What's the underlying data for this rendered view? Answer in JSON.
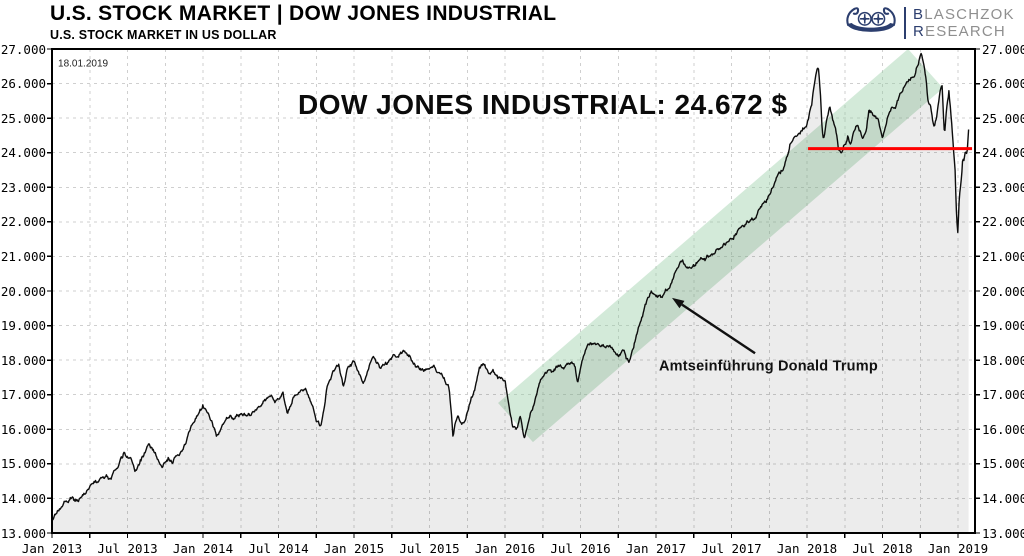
{
  "header": {
    "title": "U.S. STOCK MARKET | DOW JONES INDUSTRIAL",
    "subtitle": "U.S. STOCK MARKET IN US DOLLAR"
  },
  "logo": {
    "line1_initial": "B",
    "line1_rest": "LASCHZOK",
    "line2_initial": "R",
    "line2_rest": "ESEARCH",
    "accent_color": "#2c3e6e",
    "text_color": "#8f8f8f",
    "icon": "viking-ship-icon"
  },
  "chart_data": {
    "type": "line",
    "title": "DOW JONES INDUSTRIAL: 24.672 $",
    "date_label": "18.01.2019",
    "last_value": 24672,
    "unit": "USD",
    "grid": true,
    "ylim": [
      13000,
      27000
    ],
    "x_start_year": 2013,
    "x_end_year": 2019.12,
    "y_tick_labels": [
      "27.000",
      "26.000",
      "25.000",
      "24.000",
      "23.000",
      "22.000",
      "21.000",
      "20.000",
      "19.000",
      "18.000",
      "17.000",
      "16.000",
      "15.000",
      "14.000",
      "13.000"
    ],
    "x_tick_labels": [
      "Jan 2013",
      "Jul 2013",
      "Jan 2014",
      "Jul 2014",
      "Jan 2015",
      "Jul 2015",
      "Jan 2016",
      "Jul 2016",
      "Jan 2017",
      "Jul 2017",
      "Jan 2018",
      "Jul 2018",
      "Jan 2019"
    ],
    "series": [
      {
        "name": "Dow Jones Industrial Average",
        "color": "#0d0d0d",
        "fill": "rgba(0,0,0,0.075)",
        "keypoints": [
          [
            0.0,
            13350
          ],
          [
            0.04,
            13600
          ],
          [
            0.08,
            13880
          ],
          [
            0.12,
            13980
          ],
          [
            0.16,
            13920
          ],
          [
            0.2,
            14090
          ],
          [
            0.24,
            14300
          ],
          [
            0.28,
            14450
          ],
          [
            0.32,
            14550
          ],
          [
            0.36,
            14700
          ],
          [
            0.39,
            14560
          ],
          [
            0.42,
            14850
          ],
          [
            0.45,
            15100
          ],
          [
            0.48,
            15300
          ],
          [
            0.52,
            15050
          ],
          [
            0.55,
            14780
          ],
          [
            0.58,
            15000
          ],
          [
            0.61,
            15300
          ],
          [
            0.64,
            15550
          ],
          [
            0.67,
            15470
          ],
          [
            0.7,
            15100
          ],
          [
            0.73,
            14880
          ],
          [
            0.77,
            15200
          ],
          [
            0.8,
            15080
          ],
          [
            0.83,
            15300
          ],
          [
            0.86,
            15400
          ],
          [
            0.89,
            15650
          ],
          [
            0.92,
            16050
          ],
          [
            0.96,
            16250
          ],
          [
            1.0,
            16550
          ],
          [
            1.03,
            16450
          ],
          [
            1.06,
            16250
          ],
          [
            1.09,
            15720
          ],
          [
            1.12,
            15900
          ],
          [
            1.15,
            16150
          ],
          [
            1.18,
            16350
          ],
          [
            1.21,
            16270
          ],
          [
            1.25,
            16450
          ],
          [
            1.29,
            16380
          ],
          [
            1.33,
            16550
          ],
          [
            1.37,
            16680
          ],
          [
            1.41,
            16850
          ],
          [
            1.45,
            16950
          ],
          [
            1.49,
            16830
          ],
          [
            1.53,
            17050
          ],
          [
            1.56,
            16550
          ],
          [
            1.6,
            16950
          ],
          [
            1.64,
            17150
          ],
          [
            1.68,
            17100
          ],
          [
            1.71,
            16950
          ],
          [
            1.75,
            16350
          ],
          [
            1.78,
            16100
          ],
          [
            1.82,
            17200
          ],
          [
            1.86,
            17600
          ],
          [
            1.9,
            17830
          ],
          [
            1.93,
            17250
          ],
          [
            1.96,
            17850
          ],
          [
            2.0,
            17900
          ],
          [
            2.03,
            17600
          ],
          [
            2.06,
            17280
          ],
          [
            2.1,
            17850
          ],
          [
            2.13,
            18100
          ],
          [
            2.17,
            17750
          ],
          [
            2.21,
            17950
          ],
          [
            2.25,
            18050
          ],
          [
            2.29,
            18150
          ],
          [
            2.33,
            18280
          ],
          [
            2.37,
            18120
          ],
          [
            2.41,
            17850
          ],
          [
            2.45,
            17700
          ],
          [
            2.49,
            17750
          ],
          [
            2.53,
            17850
          ],
          [
            2.56,
            17600
          ],
          [
            2.6,
            17450
          ],
          [
            2.63,
            17200
          ],
          [
            2.645,
            16450
          ],
          [
            2.655,
            15750
          ],
          [
            2.67,
            16100
          ],
          [
            2.69,
            16300
          ],
          [
            2.71,
            16050
          ],
          [
            2.74,
            16300
          ],
          [
            2.77,
            16850
          ],
          [
            2.8,
            17150
          ],
          [
            2.83,
            17650
          ],
          [
            2.86,
            17800
          ],
          [
            2.89,
            17550
          ],
          [
            2.92,
            17750
          ],
          [
            2.96,
            17500
          ],
          [
            3.0,
            17400
          ],
          [
            3.02,
            16900
          ],
          [
            3.05,
            16100
          ],
          [
            3.08,
            16000
          ],
          [
            3.1,
            16350
          ],
          [
            3.13,
            15700
          ],
          [
            3.16,
            16400
          ],
          [
            3.2,
            16900
          ],
          [
            3.24,
            17500
          ],
          [
            3.28,
            17700
          ],
          [
            3.32,
            17750
          ],
          [
            3.36,
            17900
          ],
          [
            3.39,
            17700
          ],
          [
            3.43,
            17850
          ],
          [
            3.46,
            17900
          ],
          [
            3.48,
            17420
          ],
          [
            3.51,
            17950
          ],
          [
            3.55,
            18450
          ],
          [
            3.59,
            18550
          ],
          [
            3.63,
            18500
          ],
          [
            3.67,
            18400
          ],
          [
            3.71,
            18300
          ],
          [
            3.75,
            18150
          ],
          [
            3.79,
            18250
          ],
          [
            3.82,
            17950
          ],
          [
            3.86,
            18500
          ],
          [
            3.9,
            19150
          ],
          [
            3.94,
            19750
          ],
          [
            3.97,
            19900
          ],
          [
            4.0,
            19820
          ],
          [
            4.04,
            19880
          ],
          [
            4.07,
            20050
          ],
          [
            4.1,
            20250
          ],
          [
            4.13,
            20650
          ],
          [
            4.17,
            20900
          ],
          [
            4.21,
            20680
          ],
          [
            4.25,
            20700
          ],
          [
            4.29,
            20950
          ],
          [
            4.33,
            21000
          ],
          [
            4.37,
            21080
          ],
          [
            4.41,
            21250
          ],
          [
            4.45,
            21400
          ],
          [
            4.49,
            21500
          ],
          [
            4.53,
            21700
          ],
          [
            4.57,
            21900
          ],
          [
            4.61,
            21980
          ],
          [
            4.65,
            22050
          ],
          [
            4.69,
            22350
          ],
          [
            4.73,
            22500
          ],
          [
            4.77,
            23000
          ],
          [
            4.81,
            23400
          ],
          [
            4.85,
            23600
          ],
          [
            4.89,
            24250
          ],
          [
            4.93,
            24600
          ],
          [
            4.97,
            24750
          ],
          [
            5.0,
            24800
          ],
          [
            5.03,
            25300
          ],
          [
            5.06,
            26400
          ],
          [
            5.075,
            26600
          ],
          [
            5.09,
            25700
          ],
          [
            5.1,
            24700
          ],
          [
            5.11,
            24400
          ],
          [
            5.13,
            25000
          ],
          [
            5.15,
            25350
          ],
          [
            5.17,
            24900
          ],
          [
            5.19,
            24700
          ],
          [
            5.21,
            24100
          ],
          [
            5.23,
            23950
          ],
          [
            5.25,
            24250
          ],
          [
            5.27,
            24500
          ],
          [
            5.29,
            24250
          ],
          [
            5.31,
            24600
          ],
          [
            5.33,
            24850
          ],
          [
            5.35,
            24650
          ],
          [
            5.37,
            24500
          ],
          [
            5.39,
            24750
          ],
          [
            5.41,
            25300
          ],
          [
            5.44,
            25150
          ],
          [
            5.47,
            25050
          ],
          [
            5.5,
            24350
          ],
          [
            5.53,
            24950
          ],
          [
            5.56,
            25250
          ],
          [
            5.59,
            25400
          ],
          [
            5.62,
            25700
          ],
          [
            5.65,
            25950
          ],
          [
            5.68,
            26050
          ],
          [
            5.71,
            26150
          ],
          [
            5.73,
            26500
          ],
          [
            5.755,
            26830
          ],
          [
            5.77,
            26650
          ],
          [
            5.79,
            26200
          ],
          [
            5.8,
            25600
          ],
          [
            5.82,
            25400
          ],
          [
            5.84,
            24750
          ],
          [
            5.86,
            25100
          ],
          [
            5.88,
            25700
          ],
          [
            5.895,
            25950
          ],
          [
            5.91,
            24500
          ],
          [
            5.925,
            25350
          ],
          [
            5.94,
            25800
          ],
          [
            5.955,
            25050
          ],
          [
            5.97,
            24200
          ],
          [
            5.98,
            23600
          ],
          [
            5.99,
            22400
          ],
          [
            5.998,
            21800
          ],
          [
            6.01,
            22900
          ],
          [
            6.02,
            23300
          ],
          [
            6.03,
            23900
          ],
          [
            6.04,
            23850
          ],
          [
            6.05,
            24100
          ],
          [
            6.06,
            24000
          ],
          [
            6.07,
            24672
          ]
        ]
      }
    ],
    "annotations": {
      "trump_event": {
        "text": "Amtseinführung Donald Trump",
        "arrow_tip_tv": [
          4.106,
          19800
        ],
        "arrow_tail_tv": [
          4.656,
          18200
        ],
        "text_anchor_tv": [
          4.02,
          17700
        ]
      },
      "resistance_line": {
        "color": "#ff0000",
        "value": 24120,
        "t_from": 5.007,
        "t_to": 6.093
      },
      "trend_channel": {
        "color": "rgba(150,205,165,0.42)",
        "polygon_tv": [
          [
            2.954,
            16760
          ],
          [
            5.669,
            27000
          ],
          [
            5.901,
            25870
          ],
          [
            3.185,
            15630
          ]
        ]
      },
      "value_label_tv": [
        3.25,
        25120
      ],
      "date_label_tv": [
        0.04,
        26500
      ]
    },
    "legend": "none"
  }
}
